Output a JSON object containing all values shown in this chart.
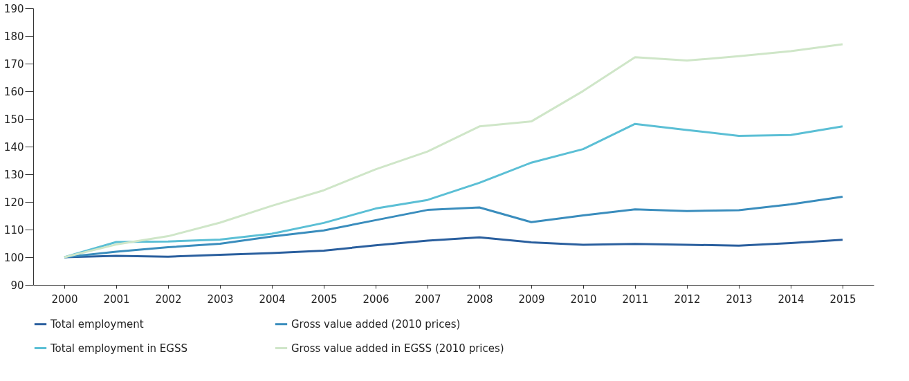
{
  "chart_data": {
    "type": "line",
    "categories": [
      "2000",
      "2001",
      "2002",
      "2003",
      "2004",
      "2005",
      "2006",
      "2007",
      "2008",
      "2009",
      "2010",
      "2011",
      "2012",
      "2013",
      "2014",
      "2015"
    ],
    "series": [
      {
        "name": "Total employment",
        "color": "#2a5f9e",
        "values": [
          100,
          100.5,
          100.2,
          100.9,
          101.5,
          102.4,
          104.3,
          106,
          107.2,
          105.4,
          104.5,
          104.8,
          104.5,
          104.2,
          105.1,
          106.3
        ]
      },
      {
        "name": "Gross value added (2010 prices)",
        "color": "#3a8dbd",
        "values": [
          100,
          102,
          103.6,
          104.9,
          107.5,
          109.7,
          113.4,
          117.1,
          118,
          112.7,
          115.1,
          117.3,
          116.7,
          117,
          119.1,
          121.9
        ]
      },
      {
        "name": "Total employment in EGSS",
        "color": "#5bbfd5",
        "values": [
          100,
          105.5,
          105.7,
          106.4,
          108.5,
          112.4,
          117.6,
          120.7,
          126.9,
          134.2,
          139.1,
          148.2,
          146,
          143.9,
          144.2,
          147.3
        ]
      },
      {
        "name": "Gross value added in EGSS (2010 prices)",
        "color": "#cfe6c8",
        "values": [
          100,
          104.6,
          107.6,
          112.5,
          118.6,
          124.2,
          131.8,
          138.2,
          147.3,
          149.1,
          160.1,
          172.3,
          171.1,
          172.7,
          174.5,
          177
        ]
      }
    ],
    "ylim": [
      90,
      190
    ],
    "yticks": [
      90,
      100,
      110,
      120,
      130,
      140,
      150,
      160,
      170,
      180,
      190
    ],
    "grid": false,
    "legend": "bottom",
    "line_style": "solid",
    "marker": "none"
  }
}
